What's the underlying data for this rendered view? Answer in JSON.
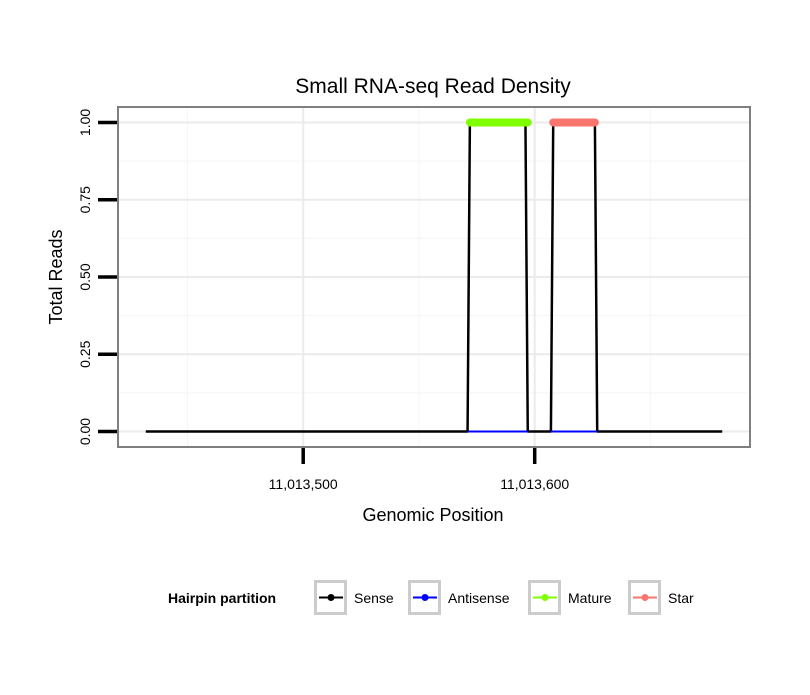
{
  "chart_data": {
    "type": "line",
    "title": "Small RNA-seq Read Density",
    "xlabel": "Genomic Position",
    "ylabel": "Total Reads",
    "xlim": [
      11013420,
      11013693
    ],
    "ylim": [
      -0.05,
      1.05
    ],
    "x_ticks": [
      11013500,
      11013600
    ],
    "x_tick_labels": [
      "11,013,500",
      "11,013,600"
    ],
    "x_minor": [
      11013450,
      11013550,
      11013650
    ],
    "y_ticks": [
      0,
      0.25,
      0.5,
      0.75,
      1
    ],
    "y_tick_labels": [
      "0.00",
      "0.25",
      "0.50",
      "0.75",
      "1.00"
    ],
    "grid": true,
    "legend": {
      "title": "Hairpin partition",
      "placement": "bottom"
    },
    "series": [
      {
        "name": "Sense",
        "color": "#000000",
        "x": [
          11013432,
          11013571,
          11013572,
          11013596,
          11013597,
          11013607,
          11013608,
          11013626,
          11013627,
          11013681
        ],
        "y": [
          0,
          0,
          1,
          1,
          0,
          0,
          1,
          1,
          0,
          0
        ],
        "width": 2.5
      },
      {
        "name": "Antisense",
        "color": "#0000ff",
        "segments": [
          {
            "x": [
              11013571,
              11013597
            ],
            "y": [
              0,
              0
            ]
          },
          {
            "x": [
              11013607,
              11013627
            ],
            "y": [
              0,
              0
            ]
          }
        ],
        "width": 2
      },
      {
        "name": "Mature",
        "color": "#7fff00",
        "segments": [
          {
            "x": [
              11013572,
              11013597
            ],
            "y": [
              1,
              1
            ]
          }
        ],
        "width": 8
      },
      {
        "name": "Star",
        "color": "#f8766d",
        "segments": [
          {
            "x": [
              11013608,
              11013626
            ],
            "y": [
              1,
              1
            ]
          }
        ],
        "width": 8
      }
    ]
  }
}
